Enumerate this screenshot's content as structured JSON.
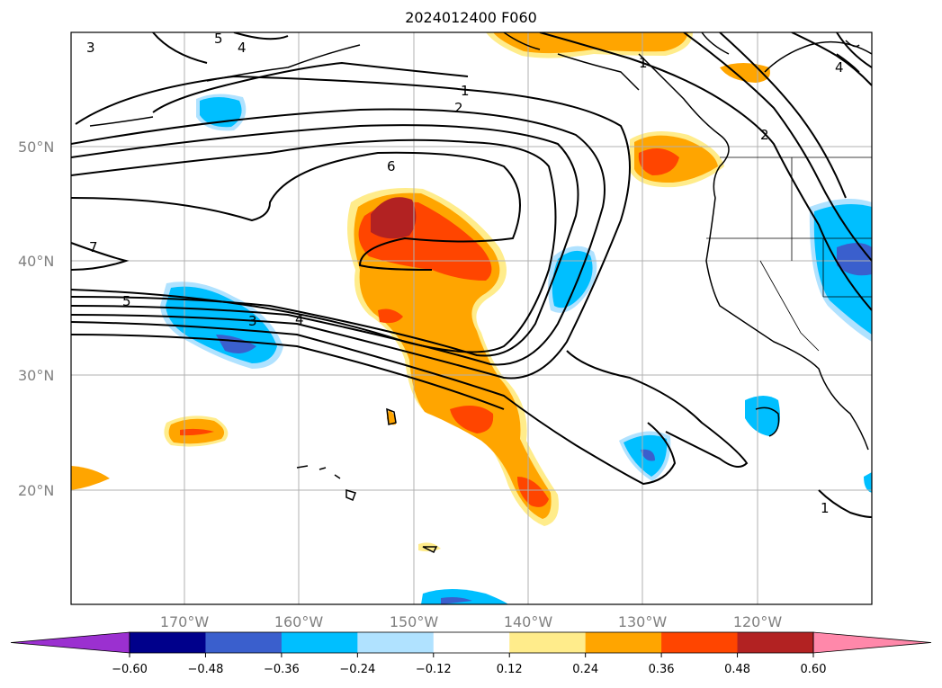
{
  "title": "2024012400 F060",
  "lat_labels": [
    "50°N",
    "40°N",
    "30°N",
    "20°N"
  ],
  "lon_labels": [
    "170°W",
    "160°W",
    "150°W",
    "140°W",
    "130°W",
    "120°W"
  ],
  "colorbar": {
    "ticks": [
      "−0.60",
      "−0.48",
      "−0.36",
      "−0.24",
      "−0.12",
      "0.12",
      "0.24",
      "0.36",
      "0.48",
      "0.60"
    ],
    "colors": [
      "#9b30d0",
      "#00008b",
      "#3a5fcd",
      "#00bfff",
      "#b0e2ff",
      "#ffffff",
      "#ffec8b",
      "#ffa500",
      "#ff4500",
      "#b22222",
      "#ff88aa"
    ]
  },
  "contour_labels": [
    "1",
    "2",
    "6",
    "5",
    "3",
    "4",
    "7",
    "3",
    "5",
    "4",
    "1",
    "2",
    "4",
    "1"
  ],
  "colors": {
    "grid": "#b0b0b0",
    "coast": "#000000"
  }
}
